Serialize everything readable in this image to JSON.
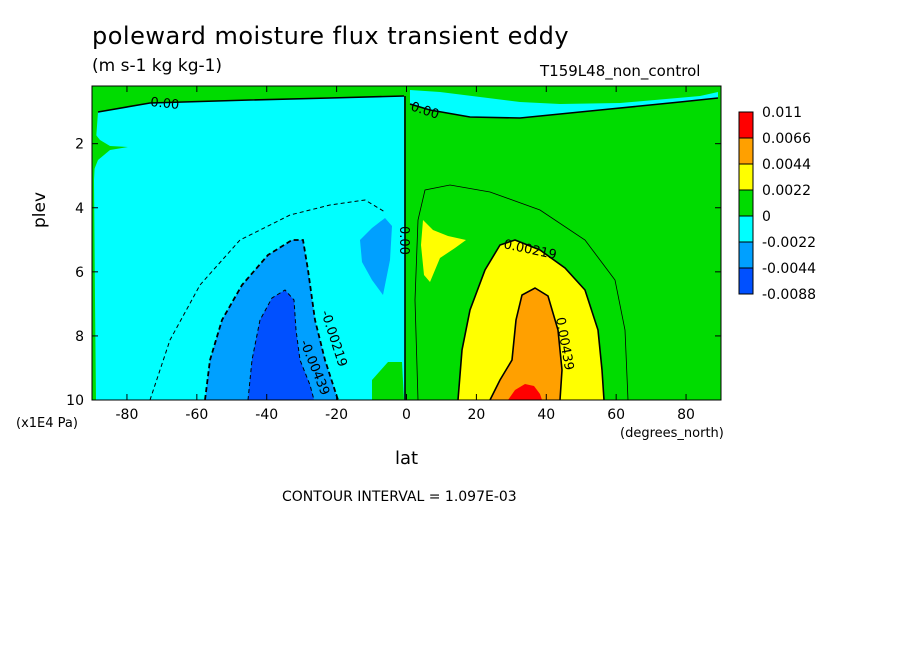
{
  "chart_data": {
    "type": "contour",
    "title": "poleward moisture flux transient eddy",
    "units": "(m s-1 kg kg-1)",
    "run": "T159L48_non_control",
    "xlabel": "lat",
    "xunit": "(degrees_north)",
    "ylabel": "plev",
    "yunit": "(x1E4 Pa)",
    "xlim": [
      -90,
      90
    ],
    "ylim": [
      10,
      0.2
    ],
    "x_ticks": [
      "-80",
      "-60",
      "-40",
      "-20",
      "0",
      "20",
      "40",
      "60",
      "80"
    ],
    "y_ticks": [
      "2",
      "4",
      "6",
      "8",
      "10"
    ],
    "contour_interval_text": "CONTOUR INTERVAL = 1.097E-03",
    "contour_labels": [
      "0.00",
      "0.00",
      "0.00",
      "0.00219",
      "0.00439",
      "-0.00219",
      "-0.00439"
    ],
    "colorbar": {
      "labels": [
        "0.011",
        "0.0066",
        "0.0044",
        "0.0022",
        "0",
        "-0.0022",
        "-0.0044",
        "-0.0088"
      ],
      "colors": [
        "#ff0000",
        "#ffa000",
        "#ffff00",
        "#00dc00",
        "#00ffff",
        "#00a0ff",
        "#0050ff"
      ]
    }
  }
}
